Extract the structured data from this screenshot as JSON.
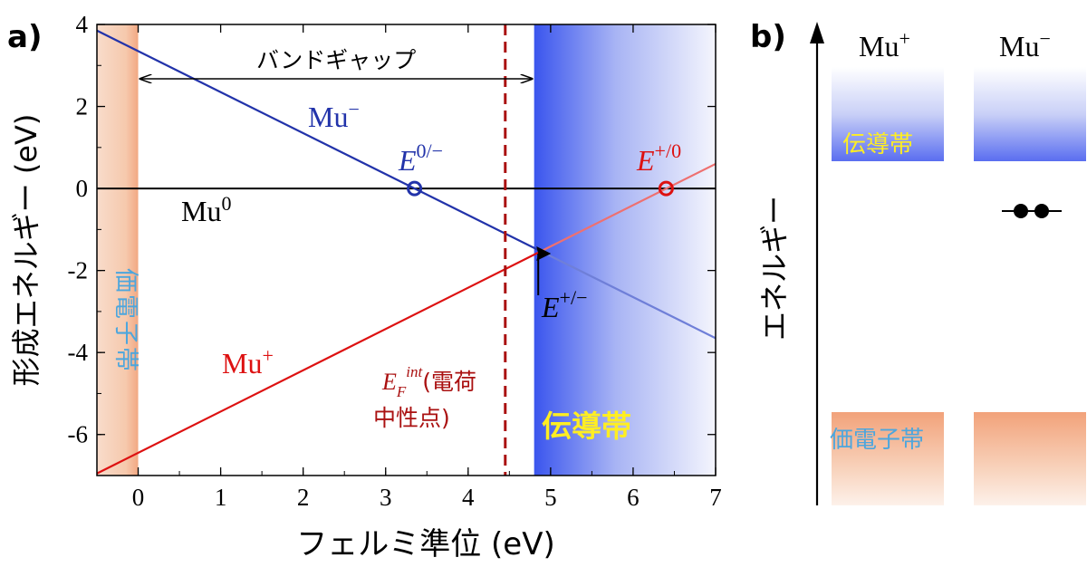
{
  "panels": {
    "a": {
      "label": "a)"
    },
    "b": {
      "label": "b)"
    }
  },
  "chart_data": [
    {
      "type": "line",
      "panel": "a)",
      "xlabel": "フェルミ準位 (eV)",
      "ylabel": "形成エネルギー (eV)",
      "xlim": [
        -0.5,
        7
      ],
      "ylim": [
        -7,
        4
      ],
      "xticks": [
        0,
        1,
        2,
        3,
        4,
        5,
        6,
        7
      ],
      "yticks": [
        4,
        2,
        0,
        -2,
        -4,
        -6
      ],
      "x_tick_labels": [
        "0",
        "1",
        "2",
        "3",
        "4",
        "5",
        "6",
        "7"
      ],
      "y_tick_labels": [
        "4",
        "2",
        "0",
        "-2",
        "-4",
        "-6"
      ],
      "grid": false,
      "series": [
        {
          "name": "Mu−",
          "label_main": "Mu",
          "label_sup": "−",
          "color": "#2233aa",
          "x": [
            -0.5,
            7
          ],
          "y": [
            3.85,
            -3.65
          ]
        },
        {
          "name": "Mu0",
          "label_main": "Mu",
          "label_sup": "0",
          "color": "#000000",
          "x": [
            -0.5,
            7
          ],
          "y": [
            0,
            0
          ]
        },
        {
          "name": "Mu+",
          "label_main": "Mu",
          "label_sup": "+",
          "color": "#dd1111",
          "x": [
            -0.5,
            7
          ],
          "y": [
            -6.95,
            0.6
          ]
        }
      ],
      "transition_points": [
        {
          "main": "E",
          "sup": "0/−",
          "x": 3.35,
          "y": 0,
          "color": "#2233aa"
        },
        {
          "main": "E",
          "sup": "+/0",
          "x": 6.4,
          "y": 0,
          "color": "#dd1111"
        }
      ],
      "crossing": {
        "main": "E",
        "sup": "+/−",
        "x": 4.85,
        "y": -1.5
      },
      "efint": {
        "x": 4.45,
        "color": "#aa1111",
        "text_main": "E",
        "text_sub": "F",
        "text_sup": "int",
        "text_paren": "(電荷",
        "text_line2": "中性点)"
      },
      "band_gap": {
        "label": "バンドギャップ",
        "x_from": 0,
        "x_to": 4.8
      },
      "valence_band": {
        "label": "価電子帯",
        "x_to": 0,
        "color": "#f2a27a",
        "label_color": "#4da6dd"
      },
      "conduction_band": {
        "label": "伝導帯",
        "x_from": 4.8,
        "color": "#3a55ee",
        "label_color": "#ffee22"
      }
    },
    {
      "type": "diagram",
      "panel": "b)",
      "axis_label": "エネルギー",
      "columns": [
        {
          "main": "Mu",
          "sup": "+",
          "conduction_label": "伝導帯",
          "valence_label": "価電子帯",
          "electrons": 0
        },
        {
          "main": "Mu",
          "sup": "−",
          "conduction_label": "",
          "valence_label": "",
          "electrons": 2
        }
      ],
      "conduction_color": "#5a6ef0",
      "valence_color": "#f2a27a",
      "conduction_label_color": "#ffee22",
      "valence_label_color": "#4da6dd"
    }
  ]
}
